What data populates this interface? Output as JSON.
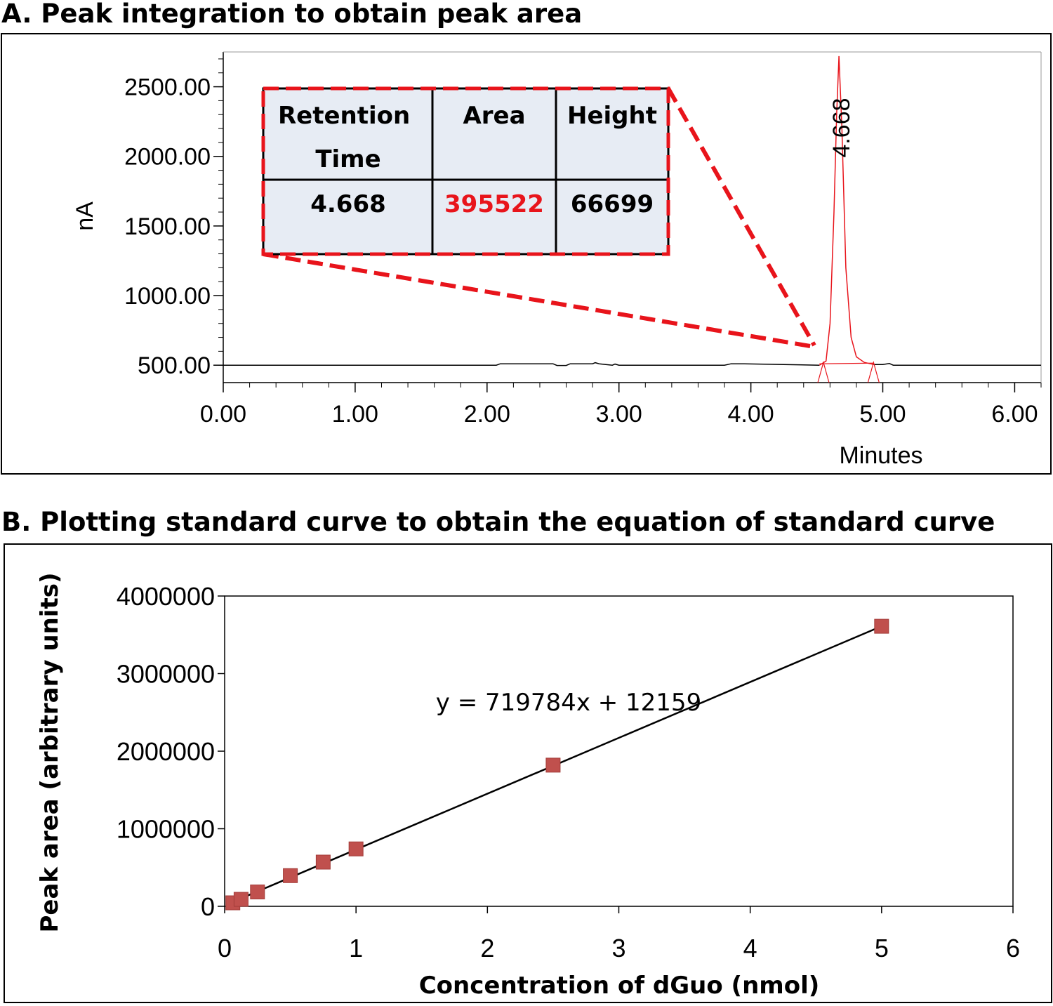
{
  "panel_a": {
    "title": "A. Peak integration to obtain peak area",
    "peak_label": "4.668",
    "table": {
      "headers": [
        "Retention Time",
        "Area",
        "Height"
      ],
      "row": [
        "4.668",
        "395522",
        "66699"
      ],
      "highlight_color": "#e8141b"
    },
    "colors": {
      "trace": "#000000",
      "peak": "#e8141b",
      "callout": "#e8141b",
      "table_bg": "#e7ecf4"
    }
  },
  "panel_b": {
    "title": "B. Plotting standard curve to obtain the equation of standard curve",
    "equation": "y = 719784x + 12159",
    "colors": {
      "marker": "#c0504d",
      "line": "#000000"
    }
  },
  "chart_data": [
    {
      "type": "line",
      "xlabel": "Minutes",
      "ylabel": "nA",
      "xlim": [
        0,
        6.2
      ],
      "ylim": [
        375,
        2750
      ],
      "x_ticks": [
        "0.00",
        "1.00",
        "2.00",
        "3.00",
        "4.00",
        "5.00",
        "6.00"
      ],
      "y_ticks": [
        "500.00",
        "1000.00",
        "1500.00",
        "2000.00",
        "2500.00"
      ],
      "baseline": 500,
      "series": [
        {
          "x": [
            0,
            2.07,
            2.1,
            2.5,
            2.53,
            2.6,
            2.63,
            2.8,
            2.82,
            2.85,
            2.95,
            2.97,
            3.0,
            3.8,
            3.85,
            3.95,
            4.52,
            4.57,
            4.6,
            4.63,
            4.65,
            4.668,
            4.69,
            4.72,
            4.76,
            4.8,
            4.86,
            4.93,
            5.0,
            5.05,
            5.08,
            6.2
          ],
          "y": [
            500,
            500,
            510,
            510,
            498,
            498,
            510,
            510,
            518,
            510,
            500,
            508,
            500,
            500,
            510,
            510,
            500,
            530,
            800,
            1600,
            2300,
            2720,
            2200,
            1200,
            700,
            560,
            520,
            505,
            505,
            512,
            500,
            500
          ]
        }
      ],
      "annotations": [
        "4.668"
      ]
    },
    {
      "type": "scatter",
      "xlabel": "Concentration of dGuo (nmol)",
      "ylabel": "Peak area (arbitrary units)",
      "xlim": [
        0,
        6
      ],
      "ylim": [
        0,
        4000000
      ],
      "x_ticks": [
        "0",
        "1",
        "2",
        "3",
        "4",
        "5",
        "6"
      ],
      "y_ticks": [
        "0",
        "1000000",
        "2000000",
        "3000000",
        "4000000"
      ],
      "x": [
        0.0625,
        0.125,
        0.25,
        0.5,
        0.75,
        1,
        2.5,
        5
      ],
      "y": [
        45000,
        90000,
        185000,
        395522,
        570000,
        740000,
        1820000,
        3610000
      ],
      "trendline": {
        "slope": 719784,
        "intercept": 12159,
        "label": "y = 719784x + 12159"
      },
      "grid": false,
      "legend": "none"
    }
  ]
}
